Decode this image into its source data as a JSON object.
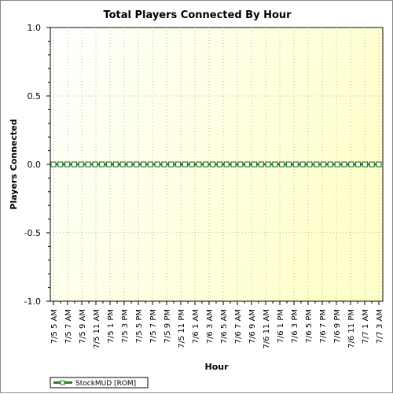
{
  "chart_data": {
    "type": "line",
    "title": "Total Players Connected By Hour",
    "xlabel": "Hour",
    "ylabel": "Players Connected",
    "ylim": [
      -1.0,
      1.0
    ],
    "yticks": [
      "1.0",
      "0.5",
      "0.0",
      "-0.5",
      "-1.0"
    ],
    "ytick_values": [
      1.0,
      0.5,
      0.0,
      -0.5,
      -1.0
    ],
    "x_tick_labels": [
      "7/5 5 AM",
      "7/5 7 AM",
      "7/5 9 AM",
      "7/5 11 AM",
      "7/5 1 PM",
      "7/5 3 PM",
      "7/5 5 PM",
      "7/5 7 PM",
      "7/5 9 PM",
      "7/5 11 PM",
      "7/6 1 AM",
      "7/6 3 AM",
      "7/6 5 AM",
      "7/6 7 AM",
      "7/6 9 AM",
      "7/6 11 AM",
      "7/6 1 PM",
      "7/6 3 PM",
      "7/6 5 PM",
      "7/6 7 PM",
      "7/6 9 PM",
      "7/6 11 PM",
      "7/7 1 AM",
      "7/7 3 AM"
    ],
    "grid": true,
    "legend_position": "bottom-left",
    "colors": {
      "series": "#2f7a2f",
      "marker_fill": "#ffffff",
      "plot_bg_top_right": "#ffffcc",
      "plot_bg_left": "#ffffff"
    },
    "series": [
      {
        "name": "StockMUD [ROM]",
        "values": [
          0,
          0,
          0,
          0,
          0,
          0,
          0,
          0,
          0,
          0,
          0,
          0,
          0,
          0,
          0,
          0,
          0,
          0,
          0,
          0,
          0,
          0,
          0,
          0,
          0,
          0,
          0,
          0,
          0,
          0,
          0,
          0,
          0,
          0,
          0,
          0,
          0,
          0,
          0,
          0,
          0,
          0,
          0,
          0,
          0,
          0,
          0,
          0
        ]
      }
    ]
  }
}
